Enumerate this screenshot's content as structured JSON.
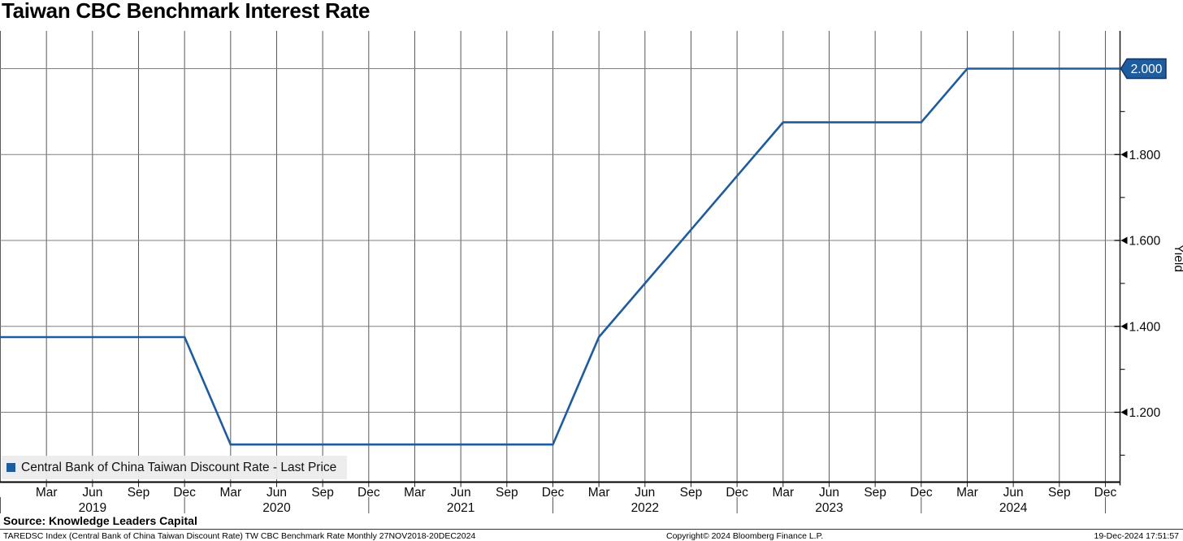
{
  "title": "Taiwan CBC Benchmark Interest Rate",
  "legend": {
    "label": "Central Bank of China Taiwan Discount Rate - Last Price",
    "marker_color": "#1f5c9e"
  },
  "last_price_badge": {
    "value": "2.000",
    "fill": "#1f5c9e",
    "border": "#0e3566",
    "text_color": "#ffffff"
  },
  "y_axis": {
    "title": "Yield",
    "side": "right",
    "major_ticks": [
      {
        "value": 1.8,
        "label": "1.800"
      },
      {
        "value": 1.6,
        "label": "1.600"
      },
      {
        "value": 1.4,
        "label": "1.400"
      },
      {
        "value": 1.2,
        "label": "1.200"
      }
    ],
    "minor_tick_values": [
      1.9,
      1.7,
      1.5,
      1.3,
      1.1
    ],
    "gridline_values": [
      2.0,
      1.8,
      1.6,
      1.4,
      1.2
    ]
  },
  "x_axis": {
    "tick_labels": [
      "Mar",
      "Jun",
      "Sep",
      "Dec",
      "Mar",
      "Jun",
      "Sep",
      "Dec",
      "Mar",
      "Jun",
      "Sep",
      "Dec",
      "Mar",
      "Jun",
      "Sep",
      "Dec",
      "Mar",
      "Jun",
      "Sep",
      "Dec",
      "Mar",
      "Jun",
      "Sep",
      "Dec"
    ],
    "year_labels": [
      "2019",
      "2020",
      "2021",
      "2022",
      "2023",
      "2024"
    ]
  },
  "chart_data": {
    "type": "line",
    "title": "Taiwan CBC Benchmark Interest Rate",
    "ylabel": "Yield",
    "ylim": [
      1.038,
      2.094
    ],
    "x_range": [
      "27NOV2018",
      "20DEC2024"
    ],
    "frequency": "Monthly",
    "grid": true,
    "legend_position": "bottom-left",
    "series": [
      {
        "name": "Central Bank of China Taiwan Discount Rate - Last Price",
        "color": "#1f5c9e",
        "last_price": "2.000",
        "points": [
          [
            "2018-11",
            1.375
          ],
          [
            "2019-12",
            1.375
          ],
          [
            "2020-03",
            1.125
          ],
          [
            "2021-12",
            1.125
          ],
          [
            "2022-03",
            1.375
          ],
          [
            "2022-06",
            1.5
          ],
          [
            "2022-09",
            1.625
          ],
          [
            "2022-12",
            1.75
          ],
          [
            "2023-03",
            1.875
          ],
          [
            "2023-12",
            1.875
          ],
          [
            "2024-03",
            2.0
          ],
          [
            "2024-12",
            2.0
          ]
        ]
      }
    ]
  },
  "footer": {
    "source": "Source: Knowledge Leaders Capital",
    "description": "TAREDSC Index (Central Bank of China Taiwan Discount Rate) TW CBC Benchmark Rate  Monthly 27NOV2018-20DEC2024",
    "copyright": "Copyright© 2024 Bloomberg Finance L.P.",
    "timestamp": "19-Dec-2024 17:51:57"
  }
}
